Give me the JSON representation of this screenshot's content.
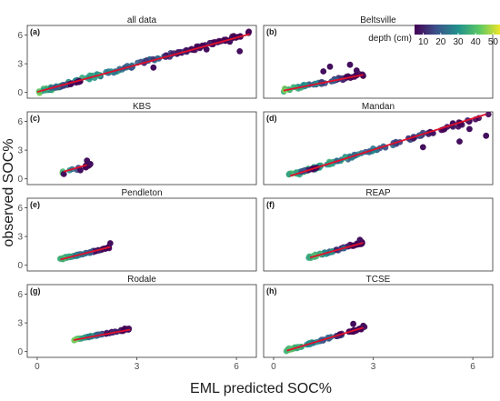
{
  "chart_data": {
    "type": "scatter",
    "layout": "facet grid 4 rows x 2 columns",
    "xlabel": "EML predicted SOC%",
    "ylabel": "observed SOC%",
    "x_ticks": [
      "0",
      "3",
      "6"
    ],
    "y_ticks": [
      "0",
      "3",
      "6"
    ],
    "xlim": [
      -0.3,
      6.6
    ],
    "ylim": [
      -0.6,
      7.0
    ],
    "legend": {
      "title": "depth (cm)",
      "ticks": [
        "10",
        "20",
        "30",
        "40",
        "50"
      ],
      "tick_values": [
        10,
        20,
        30,
        40,
        50
      ],
      "range": [
        5,
        55
      ],
      "placement": "inside panel b, top-right",
      "colormap": [
        "#440154",
        "#3b528b",
        "#21918c",
        "#5ec962",
        "#fde725"
      ]
    },
    "fit_line_color": "#e0102a",
    "panels": [
      {
        "letter": "(a)",
        "title": "all data",
        "fit": [
          [
            0,
            0.05
          ],
          [
            6.4,
            6.1
          ]
        ],
        "clusters": [
          {
            "x": [
              0.0,
              6.4
            ],
            "slope": 0.96,
            "intercept": 0.05,
            "spread": 0.28,
            "n": 140
          },
          {
            "x": [
              0.05,
              1.3
            ],
            "slope": 0.9,
            "intercept": 0.0,
            "spread": 0.12,
            "n": 40
          }
        ],
        "points": [
          [
            4.5,
            4.4
          ],
          [
            5.1,
            4.5
          ],
          [
            6.1,
            4.3
          ],
          [
            5.8,
            5.3
          ],
          [
            3.5,
            2.6
          ]
        ]
      },
      {
        "letter": "(b)",
        "title": "Beltsville",
        "fit": [
          [
            0.3,
            0.2
          ],
          [
            2.7,
            1.85
          ]
        ],
        "clusters": [
          {
            "x": [
              0.25,
              2.7
            ],
            "slope": 0.68,
            "intercept": 0.05,
            "spread": 0.25,
            "n": 70
          }
        ],
        "points": [
          [
            1.7,
            2.7
          ],
          [
            2.3,
            2.9
          ],
          [
            2.5,
            2.3
          ],
          [
            1.5,
            2.2
          ]
        ]
      },
      {
        "letter": "(c)",
        "title": "KBS",
        "fit": [
          [
            0.8,
            0.75
          ],
          [
            1.5,
            1.45
          ]
        ],
        "clusters": [
          {
            "x": [
              0.75,
              1.6
            ],
            "slope": 0.85,
            "intercept": 0.05,
            "spread": 0.15,
            "n": 12
          }
        ],
        "points": [
          [
            0.8,
            0.5
          ],
          [
            1.3,
            0.9
          ],
          [
            1.6,
            1.55
          ],
          [
            1.5,
            1.9
          ]
        ]
      },
      {
        "letter": "(d)",
        "title": "Mandan",
        "fit": [
          [
            0.5,
            0.3
          ],
          [
            6.4,
            6.75
          ]
        ],
        "clusters": [
          {
            "x": [
              0.45,
              6.5
            ],
            "slope": 1.05,
            "intercept": -0.15,
            "spread": 0.3,
            "n": 110
          },
          {
            "x": [
              0.45,
              1.3
            ],
            "slope": 0.8,
            "intercept": 0.1,
            "spread": 0.12,
            "n": 30
          }
        ],
        "points": [
          [
            4.5,
            3.3
          ],
          [
            5.4,
            5.8
          ],
          [
            5.6,
            3.9
          ],
          [
            6.4,
            4.5
          ],
          [
            5.9,
            5.2
          ]
        ]
      },
      {
        "letter": "(e)",
        "title": "Pendleton",
        "fit": [
          [
            0.7,
            0.6
          ],
          [
            2.2,
            1.9
          ]
        ],
        "clusters": [
          {
            "x": [
              0.65,
              2.3
            ],
            "slope": 0.8,
            "intercept": 0.1,
            "spread": 0.14,
            "n": 60
          }
        ],
        "points": [
          [
            2.2,
            2.3
          ]
        ]
      },
      {
        "letter": "(f)",
        "title": "REAP",
        "fit": [
          [
            1.1,
            0.8
          ],
          [
            2.7,
            2.35
          ]
        ],
        "clusters": [
          {
            "x": [
              1.05,
              2.7
            ],
            "slope": 0.95,
            "intercept": -0.2,
            "spread": 0.18,
            "n": 60
          }
        ],
        "points": [
          [
            2.6,
            2.65
          ]
        ]
      },
      {
        "letter": "(g)",
        "title": "Rodale",
        "fit": [
          [
            1.1,
            1.2
          ],
          [
            2.8,
            2.3
          ]
        ],
        "clusters": [
          {
            "x": [
              1.1,
              2.8
            ],
            "slope": 0.7,
            "intercept": 0.45,
            "spread": 0.14,
            "n": 55
          }
        ],
        "points": [
          [
            2.75,
            2.3
          ]
        ]
      },
      {
        "letter": "(h)",
        "title": "TCSE",
        "fit": [
          [
            0.4,
            0.1
          ],
          [
            2.7,
            2.5
          ]
        ],
        "clusters": [
          {
            "x": [
              0.35,
              2.75
            ],
            "slope": 1.0,
            "intercept": -0.25,
            "spread": 0.16,
            "n": 70
          }
        ],
        "points": [
          [
            2.7,
            2.7
          ],
          [
            2.4,
            2.9
          ]
        ]
      }
    ]
  }
}
